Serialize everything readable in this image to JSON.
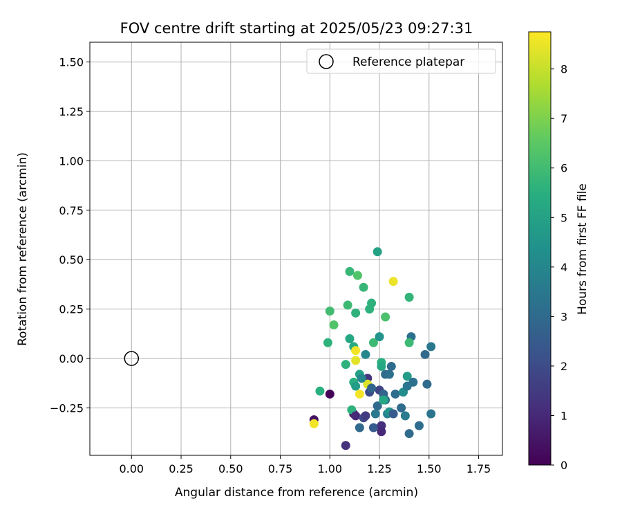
{
  "chart_data": {
    "type": "scatter",
    "title": "FOV centre drift starting at 2025/05/23 09:27:31",
    "xlabel": "Angular distance from reference (arcmin)",
    "ylabel": "Rotation from reference (arcmin)",
    "xlim": [
      -0.21,
      1.87
    ],
    "ylim": [
      -0.49,
      1.6
    ],
    "xticks": [
      "0.00",
      "0.25",
      "0.50",
      "0.75",
      "1.00",
      "1.25",
      "1.50",
      "1.75"
    ],
    "yticks": [
      "−0.25",
      "0.00",
      "0.25",
      "0.50",
      "0.75",
      "1.00",
      "1.25",
      "1.50"
    ],
    "grid": true,
    "legend": {
      "position": "top-right",
      "label": "Reference platepar"
    },
    "reference_point": {
      "x": 0.0,
      "y": 0.0
    },
    "colorbar": {
      "label": "Hours from first FF file",
      "range": [
        0,
        8.75
      ],
      "ticks": [
        "0",
        "1",
        "2",
        "3",
        "4",
        "5",
        "6",
        "7",
        "8"
      ],
      "colormap": "viridis"
    },
    "points": [
      {
        "x": 0.92,
        "y": -0.31,
        "h": 0.4
      },
      {
        "x": 0.92,
        "y": -0.33,
        "h": 8.6
      },
      {
        "x": 1.0,
        "y": -0.18,
        "h": 0.1
      },
      {
        "x": 0.95,
        "y": -0.165,
        "h": 5.5
      },
      {
        "x": 1.08,
        "y": -0.44,
        "h": 1.2
      },
      {
        "x": 1.12,
        "y": -0.28,
        "h": 0.4
      },
      {
        "x": 1.11,
        "y": -0.26,
        "h": 5.6
      },
      {
        "x": 1.13,
        "y": -0.29,
        "h": 1.0
      },
      {
        "x": 1.15,
        "y": -0.35,
        "h": 3.0
      },
      {
        "x": 1.17,
        "y": -0.3,
        "h": 2.0
      },
      {
        "x": 1.18,
        "y": -0.29,
        "h": 1.5
      },
      {
        "x": 1.19,
        "y": -0.1,
        "h": 1.3
      },
      {
        "x": 1.2,
        "y": -0.17,
        "h": 2.0
      },
      {
        "x": 1.22,
        "y": -0.35,
        "h": 2.5
      },
      {
        "x": 1.23,
        "y": -0.28,
        "h": 3.5
      },
      {
        "x": 1.24,
        "y": -0.24,
        "h": 3.0
      },
      {
        "x": 1.25,
        "y": -0.16,
        "h": 1.8
      },
      {
        "x": 1.26,
        "y": -0.34,
        "h": 1.2
      },
      {
        "x": 1.26,
        "y": -0.37,
        "h": 1.0
      },
      {
        "x": 1.27,
        "y": -0.18,
        "h": 2.8
      },
      {
        "x": 1.28,
        "y": -0.21,
        "h": 3.3
      },
      {
        "x": 1.28,
        "y": -0.08,
        "h": 3.0
      },
      {
        "x": 1.29,
        "y": -0.28,
        "h": 3.8
      },
      {
        "x": 1.3,
        "y": -0.27,
        "h": 4.5
      },
      {
        "x": 1.3,
        "y": -0.08,
        "h": 3.2
      },
      {
        "x": 1.31,
        "y": -0.04,
        "h": 3.0
      },
      {
        "x": 1.32,
        "y": -0.28,
        "h": 2.5
      },
      {
        "x": 1.33,
        "y": -0.18,
        "h": 3.1
      },
      {
        "x": 1.36,
        "y": -0.25,
        "h": 3.0
      },
      {
        "x": 1.37,
        "y": -0.17,
        "h": 4.2
      },
      {
        "x": 1.38,
        "y": -0.29,
        "h": 3.6
      },
      {
        "x": 1.39,
        "y": -0.14,
        "h": 3.4
      },
      {
        "x": 1.39,
        "y": -0.09,
        "h": 4.8
      },
      {
        "x": 1.4,
        "y": -0.38,
        "h": 3.0
      },
      {
        "x": 1.42,
        "y": -0.12,
        "h": 3.2
      },
      {
        "x": 1.45,
        "y": -0.34,
        "h": 3.1
      },
      {
        "x": 1.49,
        "y": -0.13,
        "h": 3.0
      },
      {
        "x": 1.51,
        "y": -0.28,
        "h": 3.3
      },
      {
        "x": 1.48,
        "y": 0.02,
        "h": 3.0
      },
      {
        "x": 1.51,
        "y": 0.06,
        "h": 3.5
      },
      {
        "x": 1.41,
        "y": 0.11,
        "h": 3.2
      },
      {
        "x": 1.4,
        "y": 0.08,
        "h": 5.9
      },
      {
        "x": 1.4,
        "y": 0.31,
        "h": 5.7
      },
      {
        "x": 1.32,
        "y": 0.39,
        "h": 8.5
      },
      {
        "x": 1.24,
        "y": 0.54,
        "h": 5.0
      },
      {
        "x": 1.28,
        "y": 0.21,
        "h": 6.2
      },
      {
        "x": 1.21,
        "y": 0.28,
        "h": 5.6
      },
      {
        "x": 1.2,
        "y": 0.25,
        "h": 5.6
      },
      {
        "x": 1.22,
        "y": 0.08,
        "h": 5.9
      },
      {
        "x": 1.25,
        "y": 0.11,
        "h": 4.5
      },
      {
        "x": 1.18,
        "y": 0.02,
        "h": 4.0
      },
      {
        "x": 1.26,
        "y": -0.02,
        "h": 5.5
      },
      {
        "x": 1.26,
        "y": -0.04,
        "h": 5.2
      },
      {
        "x": 1.17,
        "y": 0.36,
        "h": 5.8
      },
      {
        "x": 1.14,
        "y": 0.42,
        "h": 6.3
      },
      {
        "x": 1.1,
        "y": 0.44,
        "h": 5.8
      },
      {
        "x": 1.13,
        "y": 0.23,
        "h": 5.6
      },
      {
        "x": 1.09,
        "y": 0.27,
        "h": 5.9
      },
      {
        "x": 1.1,
        "y": 0.1,
        "h": 5.2
      },
      {
        "x": 1.12,
        "y": 0.06,
        "h": 5.3
      },
      {
        "x": 1.13,
        "y": 0.04,
        "h": 8.6
      },
      {
        "x": 1.13,
        "y": -0.01,
        "h": 8.4
      },
      {
        "x": 1.15,
        "y": -0.08,
        "h": 5.0
      },
      {
        "x": 1.12,
        "y": -0.12,
        "h": 5.5
      },
      {
        "x": 1.13,
        "y": -0.14,
        "h": 4.8
      },
      {
        "x": 1.15,
        "y": -0.18,
        "h": 8.6
      },
      {
        "x": 1.19,
        "y": -0.13,
        "h": 8.3
      },
      {
        "x": 1.16,
        "y": -0.1,
        "h": 4.0
      },
      {
        "x": 1.08,
        "y": -0.03,
        "h": 5.6
      },
      {
        "x": 1.02,
        "y": 0.17,
        "h": 6.3
      },
      {
        "x": 1.0,
        "y": 0.24,
        "h": 6.0
      },
      {
        "x": 0.99,
        "y": 0.08,
        "h": 5.6
      },
      {
        "x": 1.27,
        "y": -0.21,
        "h": 5.2
      },
      {
        "x": 1.21,
        "y": -0.15,
        "h": 2.8
      }
    ]
  }
}
